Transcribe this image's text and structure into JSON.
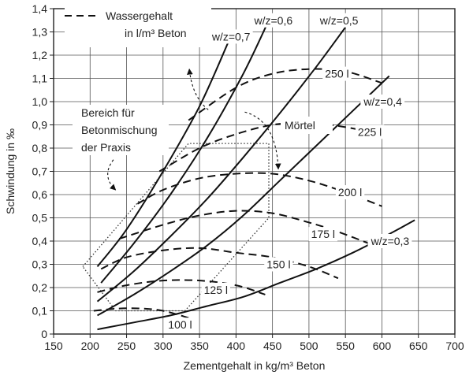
{
  "chart_data": {
    "type": "line",
    "xlabel": "Zementgehalt in kg/m³ Beton",
    "ylabel": "Schwindung in ‰",
    "xlim": [
      150,
      700
    ],
    "ylim": [
      0,
      1.4
    ],
    "x_ticks": [
      "150",
      "200",
      "250",
      "300",
      "350",
      "400",
      "450",
      "500",
      "550",
      "600",
      "650",
      "700"
    ],
    "y_ticks": [
      "0",
      "0,1",
      "0,2",
      "0,3",
      "0,4",
      "0,5",
      "0,6",
      "0,7",
      "0,8",
      "0,9",
      "1,0",
      "1,1",
      "1,2",
      "1,3",
      "1,4"
    ],
    "grid": true,
    "legend": {
      "position": "top-left",
      "line1": "Wassergehalt",
      "line2": "in l/m³ Beton"
    },
    "solid_series": [
      {
        "name": "w/z=0,7",
        "x": [
          210,
          250,
          300,
          350,
          390
        ],
        "y": [
          0.29,
          0.45,
          0.7,
          0.98,
          1.26
        ]
      },
      {
        "name": "w/z=0,6",
        "x": [
          215,
          260,
          310,
          360,
          410,
          445
        ],
        "y": [
          0.22,
          0.39,
          0.6,
          0.84,
          1.12,
          1.35
        ]
      },
      {
        "name": "w/z=0,5",
        "x": [
          210,
          260,
          310,
          360,
          410,
          460,
          510,
          550
        ],
        "y": [
          0.14,
          0.27,
          0.42,
          0.58,
          0.76,
          0.95,
          1.15,
          1.32
        ]
      },
      {
        "name": "w/z=0,4",
        "x": [
          210,
          260,
          310,
          360,
          410,
          460,
          510,
          560,
          610
        ],
        "y": [
          0.08,
          0.17,
          0.27,
          0.38,
          0.51,
          0.66,
          0.81,
          0.96,
          1.11
        ]
      },
      {
        "name": "w/z=0,3",
        "x": [
          210,
          260,
          310,
          360,
          410,
          460,
          510,
          560,
          610,
          645
        ],
        "y": [
          0.02,
          0.05,
          0.08,
          0.12,
          0.16,
          0.22,
          0.28,
          0.35,
          0.43,
          0.49
        ]
      }
    ],
    "dashed_series": [
      {
        "name": "250 l",
        "x": [
          335,
          400,
          450,
          500,
          550,
          600
        ],
        "y": [
          0.92,
          1.06,
          1.12,
          1.14,
          1.13,
          1.08
        ]
      },
      {
        "name": "225 l",
        "x": [
          295,
          350,
          400,
          450,
          500,
          550,
          600
        ],
        "y": [
          0.7,
          0.8,
          0.86,
          0.9,
          0.91,
          0.89,
          0.86
        ]
      },
      {
        "name": "200 l",
        "x": [
          265,
          300,
          350,
          400,
          450,
          500,
          550,
          600
        ],
        "y": [
          0.56,
          0.62,
          0.67,
          0.69,
          0.69,
          0.66,
          0.61,
          0.55
        ]
      },
      {
        "name": "175 l",
        "x": [
          240,
          300,
          350,
          400,
          450,
          500,
          540,
          590
        ],
        "y": [
          0.41,
          0.47,
          0.51,
          0.53,
          0.52,
          0.48,
          0.44,
          0.38
        ]
      },
      {
        "name": "150 l",
        "x": [
          215,
          250,
          300,
          350,
          400,
          450,
          500,
          540
        ],
        "y": [
          0.28,
          0.33,
          0.36,
          0.37,
          0.35,
          0.33,
          0.29,
          0.24
        ]
      },
      {
        "name": "125 l",
        "x": [
          210,
          250,
          300,
          350,
          400,
          440
        ],
        "y": [
          0.18,
          0.21,
          0.23,
          0.23,
          0.21,
          0.17
        ]
      },
      {
        "name": "100 l",
        "x": [
          205,
          240,
          270,
          300,
          335
        ],
        "y": [
          0.1,
          0.11,
          0.11,
          0.1,
          0.07
        ]
      }
    ],
    "labels": [
      {
        "text": "w/z=0,7",
        "x": 367,
        "y": 1.28,
        "anchor": "start"
      },
      {
        "text": "w/z=0,6",
        "x": 425,
        "y": 1.35,
        "anchor": "start"
      },
      {
        "text": "w/z=0,5",
        "x": 515,
        "y": 1.35,
        "anchor": "start"
      },
      {
        "text": "w/z=0,4",
        "x": 575,
        "y": 1.0,
        "anchor": "start"
      },
      {
        "text": "w/z=0,3",
        "x": 585,
        "y": 0.4,
        "anchor": "start"
      },
      {
        "text": "250 l",
        "x": 522,
        "y": 1.12,
        "anchor": "start"
      },
      {
        "text": "225 l",
        "x": 567,
        "y": 0.87,
        "anchor": "start"
      },
      {
        "text": "200 l",
        "x": 540,
        "y": 0.61,
        "anchor": "start"
      },
      {
        "text": "175 l",
        "x": 503,
        "y": 0.43,
        "anchor": "start"
      },
      {
        "text": "150 l",
        "x": 442,
        "y": 0.3,
        "anchor": "start"
      },
      {
        "text": "125 l",
        "x": 356,
        "y": 0.19,
        "anchor": "start"
      },
      {
        "text": "100 l",
        "x": 307,
        "y": 0.04,
        "anchor": "start"
      }
    ],
    "annotations": {
      "region_lines": [
        "Bereich für",
        "Betonmischung",
        "der Praxis"
      ],
      "mortar": "Mörtel"
    },
    "region_polygon": {
      "x": [
        190,
        335,
        445,
        445,
        330,
        235,
        190
      ],
      "y": [
        0.29,
        0.82,
        0.82,
        0.5,
        0.1,
        0.1,
        0.29
      ]
    }
  }
}
